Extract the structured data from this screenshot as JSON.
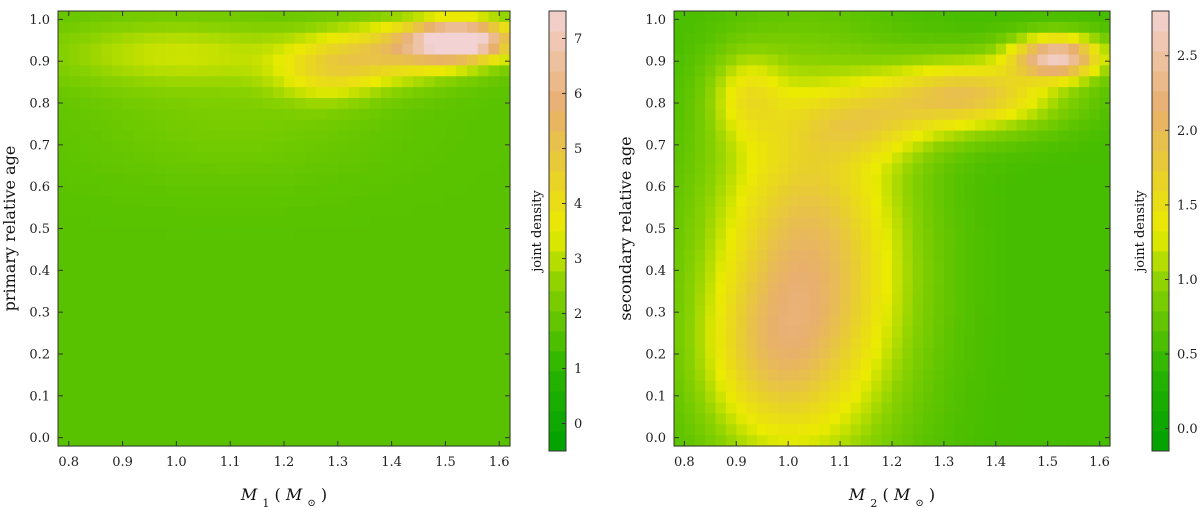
{
  "chart_data": [
    {
      "type": "heatmap",
      "title": "",
      "xlabel_var": "M",
      "xlabel_sub": "1",
      "xlabel_unit_open": " (",
      "xlabel_unit": "M",
      "xlabel_unit_sub": "⊙",
      "xlabel_unit_close": ")",
      "ylabel": "primary relative age",
      "colorbar_label": "joint density",
      "xlim": [
        0.78,
        1.62
      ],
      "ylim": [
        -0.02,
        1.02
      ],
      "x_ticks": [
        "0.8",
        "0.9",
        "1.0",
        "1.1",
        "1.2",
        "1.3",
        "1.4",
        "1.5",
        "1.6"
      ],
      "y_ticks": [
        "0.0",
        "0.1",
        "0.2",
        "0.3",
        "0.4",
        "0.5",
        "0.6",
        "0.7",
        "0.8",
        "0.9",
        "1.0"
      ],
      "colorbar_range": [
        -0.5,
        7.5
      ],
      "colorbar_ticks": [
        "0",
        "1",
        "2",
        "3",
        "4",
        "5",
        "6",
        "7"
      ],
      "density_features": [
        {
          "x": 1.53,
          "y": 0.95,
          "sx": 0.07,
          "sy": 0.035,
          "amp": 6.2
        },
        {
          "x": 1.4,
          "y": 0.92,
          "sx": 0.1,
          "sy": 0.05,
          "amp": 2.6
        },
        {
          "x": 1.28,
          "y": 0.87,
          "sx": 0.07,
          "sy": 0.05,
          "amp": 1.6
        },
        {
          "x": 1.0,
          "y": 0.92,
          "sx": 0.18,
          "sy": 0.06,
          "amp": 1.4
        },
        {
          "x": 1.1,
          "y": 0.75,
          "sx": 0.2,
          "sy": 0.1,
          "amp": 0.5
        }
      ],
      "density_base": 1.7
    },
    {
      "type": "heatmap",
      "title": "",
      "xlabel_var": "M",
      "xlabel_sub": "2",
      "xlabel_unit_open": " (",
      "xlabel_unit": "M",
      "xlabel_unit_sub": "⊙",
      "xlabel_unit_close": ")",
      "ylabel": "secondary relative age",
      "colorbar_label": "joint density",
      "xlim": [
        0.78,
        1.62
      ],
      "ylim": [
        -0.02,
        1.02
      ],
      "x_ticks": [
        "0.8",
        "0.9",
        "1.0",
        "1.1",
        "1.2",
        "1.3",
        "1.4",
        "1.5",
        "1.6"
      ],
      "y_ticks": [
        "0.0",
        "0.1",
        "0.2",
        "0.3",
        "0.4",
        "0.5",
        "0.6",
        "0.7",
        "0.8",
        "0.9",
        "1.0"
      ],
      "colorbar_range": [
        -0.15,
        2.8
      ],
      "colorbar_ticks": [
        "0.0",
        "0.5",
        "1.0",
        "1.5",
        "2.0",
        "2.5"
      ],
      "density_features": [
        {
          "x": 1.04,
          "y": 0.4,
          "sx": 0.13,
          "sy": 0.3,
          "amp": 1.5
        },
        {
          "x": 0.95,
          "y": 0.18,
          "sx": 0.09,
          "sy": 0.14,
          "amp": 0.5
        },
        {
          "x": 0.92,
          "y": 0.82,
          "sx": 0.05,
          "sy": 0.07,
          "amp": 0.6
        },
        {
          "x": 1.52,
          "y": 0.91,
          "sx": 0.06,
          "sy": 0.035,
          "amp": 2.0
        },
        {
          "x": 1.35,
          "y": 0.82,
          "sx": 0.12,
          "sy": 0.06,
          "amp": 1.3
        },
        {
          "x": 1.15,
          "y": 0.75,
          "sx": 0.1,
          "sy": 0.06,
          "amp": 0.6
        }
      ],
      "density_base": 0.55
    }
  ]
}
